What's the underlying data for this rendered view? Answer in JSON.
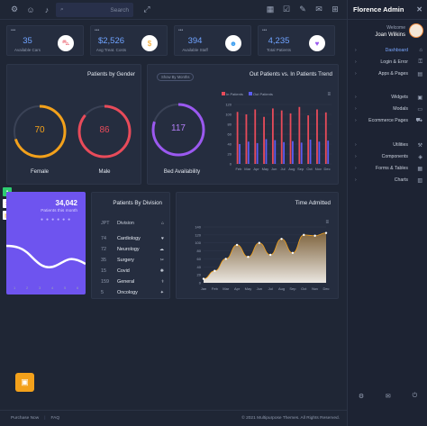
{
  "topbar": {
    "icons": [
      "gear-icon",
      "user-icon",
      "bell-icon"
    ],
    "search_placeholder": "Search",
    "right_icons": [
      "calendar-icon",
      "check-icon",
      "edit-icon",
      "mail-icon",
      "grid-icon"
    ]
  },
  "brand": "Florence Admin",
  "user": {
    "greeting": "Welcome",
    "name": "Joan Wilkins"
  },
  "nav": [
    {
      "label": "Dashboard",
      "active": true
    },
    {
      "label": "Login & Error"
    },
    {
      "label": "Apps & Pages"
    },
    {
      "label": "Widgets"
    },
    {
      "label": "Modals"
    },
    {
      "label": "Ecommerce Pages"
    },
    {
      "label": "Utilities"
    },
    {
      "label": "Components"
    },
    {
      "label": "Forms & Tables"
    },
    {
      "label": "Charts"
    }
  ],
  "sections": {
    "main": "MAIN",
    "collections": "COLLECTIONS",
    "user_interface": "USER INTERFACE"
  },
  "stats": [
    {
      "value": "35",
      "label": "Available Cars",
      "color": "#e84b5a"
    },
    {
      "value": "$2,526",
      "label": "Avg Treat. Costs",
      "color": "#f3a11b"
    },
    {
      "value": "394",
      "label": "Available Staff",
      "color": "#3d9ef0"
    },
    {
      "value": "4,235",
      "label": "Total Patients",
      "color": "#9b59f0"
    }
  ],
  "gender": {
    "title": "Patients by Gender",
    "female_value": "70",
    "female_label": "Female",
    "male_value": "86",
    "male_label": "Male",
    "female_pct": 70,
    "male_pct": 86
  },
  "bed": {
    "pill": "Show By Months",
    "value": "117",
    "label": "Bed Availability",
    "pct": 80
  },
  "trend": {
    "title": "Out Patients vs. In Patients Trend",
    "legend_in": "In Patients",
    "legend_out": "Out Patients"
  },
  "division": {
    "title": "Patients By Division",
    "header_id": "JPT",
    "header_name": "Division",
    "rows": [
      {
        "id": "74",
        "name": "Cardiology"
      },
      {
        "id": "72",
        "name": "Neurology"
      },
      {
        "id": "35",
        "name": "Surgery"
      },
      {
        "id": "15",
        "name": "Covid"
      },
      {
        "id": "159",
        "name": "General"
      },
      {
        "id": "5",
        "name": "Oncology"
      }
    ]
  },
  "time": {
    "title": "Time Admitted"
  },
  "purple": {
    "value": "34,042",
    "label": "Patients this month"
  },
  "footer": {
    "purchase": "Purchase Now",
    "faq": "FAQ",
    "copyright": "© 2021 Multipurpose Themes. All Rights Reserved."
  },
  "chart_data": [
    {
      "type": "pie",
      "title": "Patients by Gender",
      "series": [
        {
          "name": "Female",
          "values": [
            70
          ]
        },
        {
          "name": "Male",
          "values": [
            86
          ]
        }
      ]
    },
    {
      "type": "bar",
      "title": "Out Patients vs. In Patients Trend",
      "categories": [
        "Feb",
        "Mar",
        "Apr",
        "May",
        "Jun",
        "Jul",
        "Aug",
        "Sep",
        "Oct",
        "Nov",
        "Dec"
      ],
      "ylim": [
        0,
        120
      ],
      "yticks": [
        "0",
        "20",
        "40",
        "60",
        "80",
        "100",
        "120"
      ],
      "series": [
        {
          "name": "In Patients",
          "color": "#e84b5a",
          "values": [
            105,
            100,
            110,
            95,
            112,
            108,
            102,
            115,
            98,
            110,
            104
          ]
        },
        {
          "name": "Out Patients",
          "color": "#5b5cf0",
          "values": [
            40,
            45,
            42,
            50,
            48,
            44,
            46,
            43,
            49,
            45,
            47
          ]
        }
      ]
    },
    {
      "type": "area",
      "title": "Time Admitted",
      "categories": [
        "Jan",
        "Feb",
        "Mar",
        "Apr",
        "May",
        "Jun",
        "Jul",
        "Aug",
        "Sep",
        "Oct",
        "Nov",
        "Dec"
      ],
      "ylim": [
        0,
        140
      ],
      "yticks": [
        "0",
        "20",
        "40",
        "60",
        "80",
        "100",
        "120",
        "140"
      ],
      "values": [
        10,
        30,
        60,
        95,
        65,
        100,
        70,
        110,
        75,
        120,
        118,
        125
      ]
    }
  ]
}
